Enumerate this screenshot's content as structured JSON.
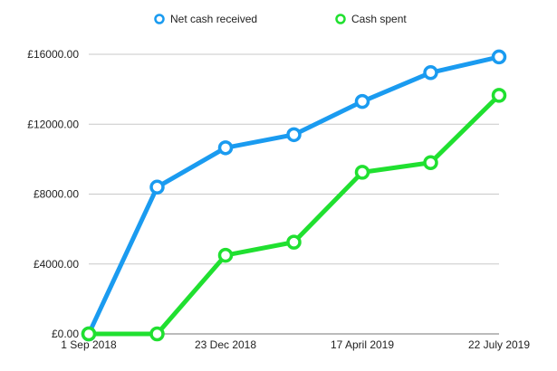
{
  "chart_data": {
    "type": "line",
    "x": [
      "1 Sep 2018",
      "",
      "23 Dec 2018",
      "",
      "17 April 2019",
      "",
      "22 July 2019"
    ],
    "x_tick_labels": [
      "1 Sep 2018",
      "23 Dec 2018",
      "17 April 2019",
      "22 July 2019"
    ],
    "y_tick_labels": [
      "£0.00",
      "£4000.00",
      "£8000.00",
      "£12000.00",
      "£16000.00"
    ],
    "ylim": [
      0,
      16000
    ],
    "grid": true,
    "legend_position": "top",
    "series": [
      {
        "name": "Net cash received",
        "color": "#1a9bf0",
        "values": [
          0,
          8400,
          10650,
          11400,
          13300,
          14950,
          15850
        ]
      },
      {
        "name": "Cash spent",
        "color": "#20e030",
        "values": [
          0,
          0,
          4500,
          5250,
          9250,
          9800,
          13650
        ]
      }
    ]
  }
}
